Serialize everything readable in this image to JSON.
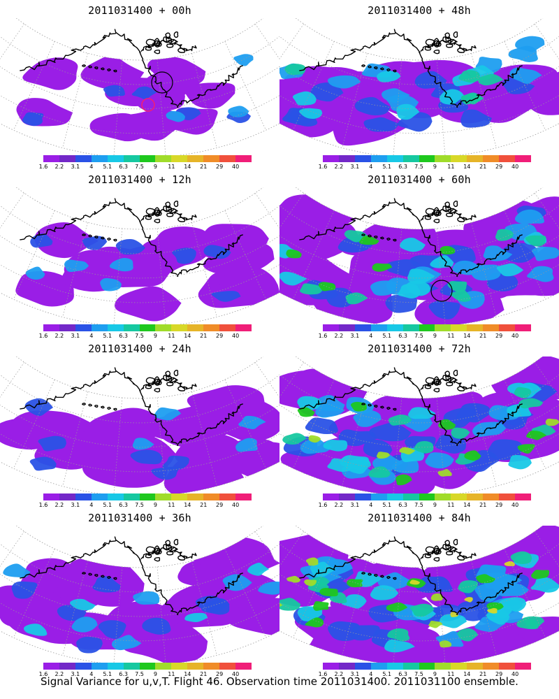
{
  "panels": [
    {
      "title": "2011031400 + 00h",
      "lead": "00h",
      "intensity": 0.25,
      "spread": 0.35,
      "circle": true,
      "circle2": true
    },
    {
      "title": "2011031400 + 48h",
      "lead": "48h",
      "intensity": 0.55,
      "spread": 0.85,
      "circle": false,
      "circle2": false
    },
    {
      "title": "2011031400 + 12h",
      "lead": "12h",
      "intensity": 0.3,
      "spread": 0.55,
      "circle": false,
      "circle2": false
    },
    {
      "title": "2011031400 + 60h",
      "lead": "60h",
      "intensity": 0.6,
      "spread": 0.92,
      "circle": true,
      "circle2": false
    },
    {
      "title": "2011031400 + 24h",
      "lead": "24h",
      "intensity": 0.3,
      "spread": 0.65,
      "circle": false,
      "circle2": false
    },
    {
      "title": "2011031400 + 72h",
      "lead": "72h",
      "intensity": 0.72,
      "spread": 0.95,
      "circle": false,
      "circle2": false
    },
    {
      "title": "2011031400 + 36h",
      "lead": "36h",
      "intensity": 0.35,
      "spread": 0.75,
      "circle": false,
      "circle2": false
    },
    {
      "title": "2011031400 + 84h",
      "lead": "84h",
      "intensity": 0.85,
      "spread": 0.98,
      "circle": false,
      "circle2": false
    }
  ],
  "colorbar": {
    "labels": [
      "1.6",
      "2.2",
      "3.1",
      "4",
      "5.1",
      "6.3",
      "7.5",
      "9",
      "11",
      "14",
      "21",
      "29",
      "40"
    ],
    "colors": [
      "#9a1ee6",
      "#7328c8",
      "#2a52e6",
      "#1e9ef0",
      "#18c8e6",
      "#16c8a0",
      "#1ec81e",
      "#a0dc2a",
      "#d8d828",
      "#e6b428",
      "#f08c28",
      "#f0503c",
      "#f01e78"
    ]
  },
  "caption": "Signal Variance for u,v,T. Flight 46. Observation time 2011031400. 2011031100 ensemble."
}
